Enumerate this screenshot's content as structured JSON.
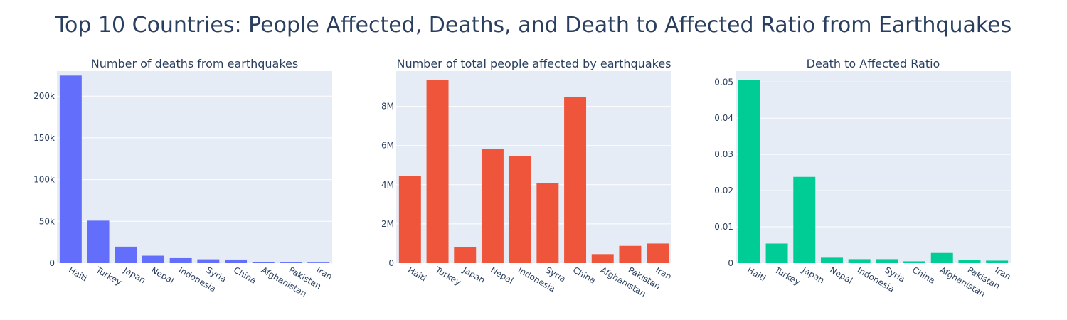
{
  "title": "Top 10 Countries: People Affected, Deaths, and Death to Affected Ratio from Earthquakes",
  "chart_data": [
    {
      "type": "bar",
      "title": "Number of deaths from earthquakes",
      "color": "#636efa",
      "categories": [
        "Haiti",
        "Turkey",
        "Japan",
        "Nepal",
        "Indonesia",
        "Syria",
        "China",
        "Afghanistan",
        "Pakistan",
        "Iran"
      ],
      "values": [
        224600,
        50800,
        19700,
        8900,
        6000,
        4600,
        4300,
        1300,
        800,
        700
      ],
      "ylim": [
        0,
        230000
      ],
      "yticks": [
        0,
        50000,
        100000,
        150000,
        200000
      ],
      "ytick_labels": [
        "0",
        "50k",
        "100k",
        "150k",
        "200k"
      ],
      "xlabel": "",
      "ylabel": ""
    },
    {
      "type": "bar",
      "title": "Number of total people affected by earthquakes",
      "color": "#ef553b",
      "categories": [
        "Haiti",
        "Turkey",
        "Japan",
        "Nepal",
        "Indonesia",
        "Syria",
        "China",
        "Afghanistan",
        "Pakistan",
        "Iran"
      ],
      "values": [
        4440000,
        9350000,
        820000,
        5820000,
        5460000,
        4100000,
        8460000,
        460000,
        880000,
        1000000
      ],
      "ylim": [
        0,
        9800000
      ],
      "yticks": [
        0,
        2000000,
        4000000,
        6000000,
        8000000
      ],
      "ytick_labels": [
        "0",
        "2M",
        "4M",
        "6M",
        "8M"
      ],
      "xlabel": "",
      "ylabel": ""
    },
    {
      "type": "bar",
      "title": "Death to Affected Ratio",
      "color": "#00cc96",
      "categories": [
        "Haiti",
        "Turkey",
        "Japan",
        "Nepal",
        "Indonesia",
        "Syria",
        "China",
        "Afghanistan",
        "Pakistan",
        "Iran"
      ],
      "values": [
        0.0506,
        0.0054,
        0.0238,
        0.0015,
        0.0011,
        0.0011,
        0.0005,
        0.0028,
        0.0009,
        0.0007
      ],
      "ylim": [
        0,
        0.053
      ],
      "yticks": [
        0,
        0.01,
        0.02,
        0.03,
        0.04,
        0.05
      ],
      "ytick_labels": [
        "0",
        "0.01",
        "0.02",
        "0.03",
        "0.04",
        "0.05"
      ],
      "xlabel": "",
      "ylabel": ""
    }
  ]
}
